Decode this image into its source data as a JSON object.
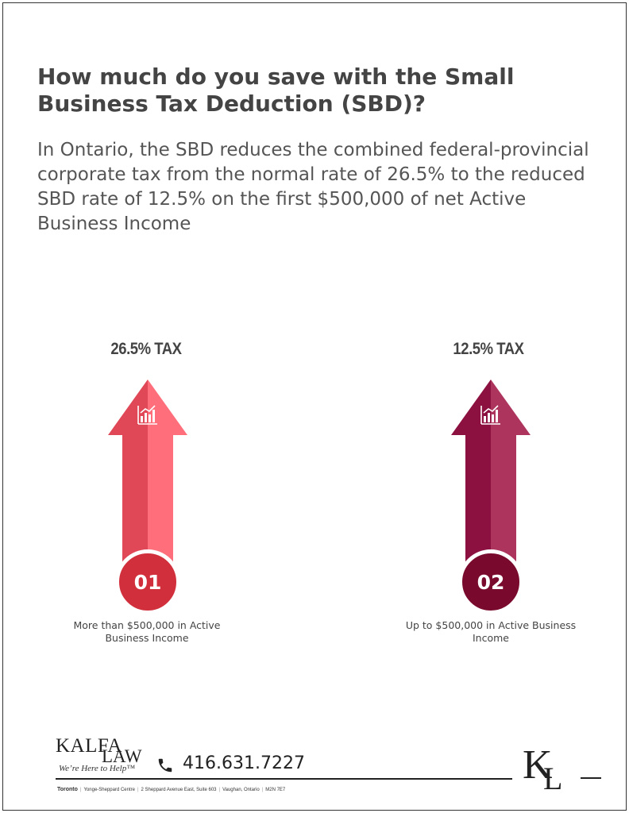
{
  "title": "How much do you save with the Small Business Tax Deduction (SBD)?",
  "intro": "In Ontario, the SBD reduces the combined federal-provincial corporate tax from the normal rate of 26.5% to the reduced SBD rate of 12.5% on the first $500,000 of net Active Business Income",
  "items": [
    {
      "tax_label": "26.5% TAX",
      "number": "01",
      "caption": "More than $500,000 in Active Business Income",
      "icon": "bar-chart-icon",
      "color_light": "#ff6f7b",
      "color_dark": "#e04757",
      "circle_color": "#d22f3c"
    },
    {
      "tax_label": "12.5% TAX",
      "number": "02",
      "caption": "Up to $500,000 in Active Business Income",
      "icon": "bar-chart-icon",
      "color_light": "#ad355d",
      "color_dark": "#8c1040",
      "circle_color": "#7a0a2d"
    }
  ],
  "footer": {
    "logo_kalfa": "KALFA",
    "logo_law": "LAW",
    "tagline": "We’re Here to Help™",
    "phone": "416.631.7227",
    "address": {
      "city": "Toronto",
      "line1": "Yonge-Sheppard Centre",
      "line2": "2 Sheppard Avenue East, Suite 603",
      "line3": "Vaughan, Ontario",
      "line4": "M2N 7E7"
    },
    "mark_k": "K",
    "mark_l": "L"
  }
}
